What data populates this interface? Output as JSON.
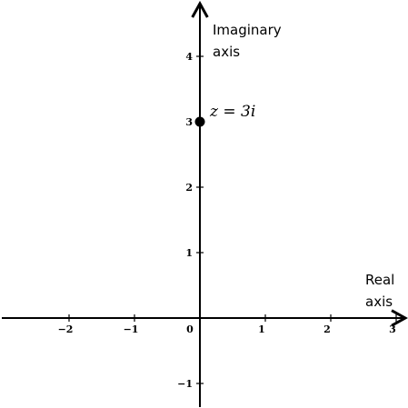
{
  "chart_data": {
    "type": "scatter",
    "title": "",
    "xlabel": [
      "Real",
      "axis"
    ],
    "ylabel": [
      "Imaginary",
      "axis"
    ],
    "xlim": [
      -3,
      3.2
    ],
    "ylim": [
      -1.4,
      4.8
    ],
    "x_ticks": [
      -2,
      -1,
      0,
      1,
      2,
      3
    ],
    "x_tick_labels": [
      "−2",
      "−1",
      "0",
      "1",
      "2",
      "3"
    ],
    "y_ticks": [
      -1,
      1,
      2,
      3,
      4
    ],
    "y_tick_labels": [
      "−1",
      "1",
      "2",
      "3",
      "4"
    ],
    "grid": false,
    "points": [
      {
        "x": 0,
        "y": 3,
        "label": "z = 3i"
      }
    ]
  }
}
